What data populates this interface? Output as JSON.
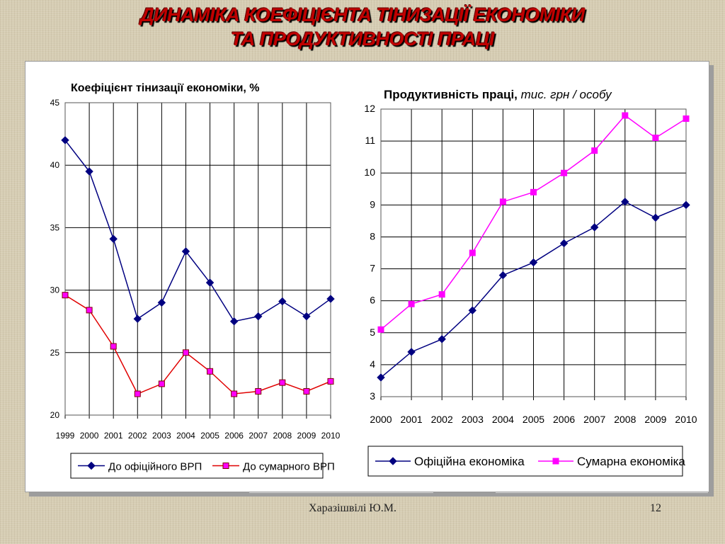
{
  "slide": {
    "title_line1": "ДИНАМІКА  КОЕФІЦІЄНТА ТІНИЗАЦІЇ ЕКОНОМІКИ",
    "title_line2": "ТА ПРОДУКТИВНОСТІ ПРАЦІ",
    "author": "Харазішвілі Ю.М.",
    "page_number": "12"
  },
  "chart_data": [
    {
      "type": "line",
      "title": "Коефіцієнт тінизації економіки, %",
      "categories": [
        "1999",
        "2000",
        "2001",
        "2002",
        "2003",
        "2004",
        "2005",
        "2006",
        "2007",
        "2008",
        "2009",
        "2010"
      ],
      "ylim": [
        20,
        45
      ],
      "yticks": [
        "20",
        "25",
        "30",
        "35",
        "40",
        "45"
      ],
      "grid": true,
      "legend_position": "bottom",
      "series": [
        {
          "name": "До офіційного ВРП",
          "color": "#000080",
          "marker": "diamond",
          "values": [
            42.0,
            39.5,
            34.1,
            27.7,
            29.0,
            33.1,
            30.6,
            27.5,
            27.9,
            29.1,
            27.9,
            29.3
          ]
        },
        {
          "name": "До сумарного ВРП",
          "color": "#e00000",
          "marker_fill": "#ff00ff",
          "marker": "square",
          "values": [
            29.6,
            28.4,
            25.5,
            21.7,
            22.5,
            25.0,
            23.5,
            21.7,
            21.9,
            22.6,
            21.9,
            22.7
          ]
        }
      ]
    },
    {
      "type": "line",
      "title": "Продуктивність праці,",
      "title_unit": "тис. грн / особу",
      "categories": [
        "2000",
        "2001",
        "2002",
        "2003",
        "2004",
        "2005",
        "2006",
        "2007",
        "2008",
        "2009",
        "2010"
      ],
      "ylim": [
        3,
        12
      ],
      "yticks": [
        "3",
        "4",
        "5",
        "6",
        "7",
        "8",
        "9",
        "10",
        "11",
        "12"
      ],
      "grid": true,
      "legend_position": "bottom",
      "series": [
        {
          "name": "Офіційна економіка",
          "color": "#000080",
          "marker": "diamond",
          "values": [
            3.6,
            4.4,
            4.8,
            5.7,
            6.8,
            7.2,
            7.8,
            8.3,
            9.1,
            8.6,
            9.0
          ]
        },
        {
          "name": "Сумарна економіка",
          "color": "#ff00ff",
          "marker": "square",
          "values": [
            5.1,
            5.9,
            6.2,
            7.5,
            9.1,
            9.4,
            10.0,
            10.7,
            11.8,
            11.1,
            11.7
          ]
        }
      ]
    }
  ]
}
